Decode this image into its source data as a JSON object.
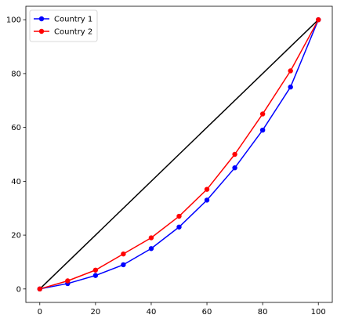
{
  "chart_data": {
    "type": "line",
    "title": "",
    "xlabel": "",
    "ylabel": "",
    "xlim": [
      -5,
      105
    ],
    "ylim": [
      -5,
      105
    ],
    "x_ticks": [
      0,
      20,
      40,
      60,
      80,
      100
    ],
    "y_ticks": [
      0,
      20,
      40,
      60,
      80,
      100
    ],
    "x_tick_labels": [
      "0",
      "20",
      "40",
      "60",
      "80",
      "100"
    ],
    "y_tick_labels": [
      "0",
      "20",
      "40",
      "60",
      "80",
      "100"
    ],
    "grid": false,
    "legend_position": "top-left",
    "reference_line": {
      "x": [
        0,
        100
      ],
      "y": [
        0,
        100
      ],
      "color": "#000000"
    },
    "series": [
      {
        "name": "Country 1",
        "color": "#0000ff",
        "marker": "circle",
        "x": [
          0,
          10,
          20,
          30,
          40,
          50,
          60,
          70,
          80,
          90,
          100
        ],
        "y": [
          0,
          2,
          5,
          9,
          15,
          23,
          33,
          45,
          59,
          75,
          100
        ]
      },
      {
        "name": "Country 2",
        "color": "#ff0000",
        "marker": "circle",
        "x": [
          0,
          10,
          20,
          30,
          40,
          50,
          60,
          70,
          80,
          90,
          100
        ],
        "y": [
          0,
          3,
          7,
          13,
          19,
          27,
          37,
          50,
          65,
          81,
          100
        ]
      }
    ]
  }
}
